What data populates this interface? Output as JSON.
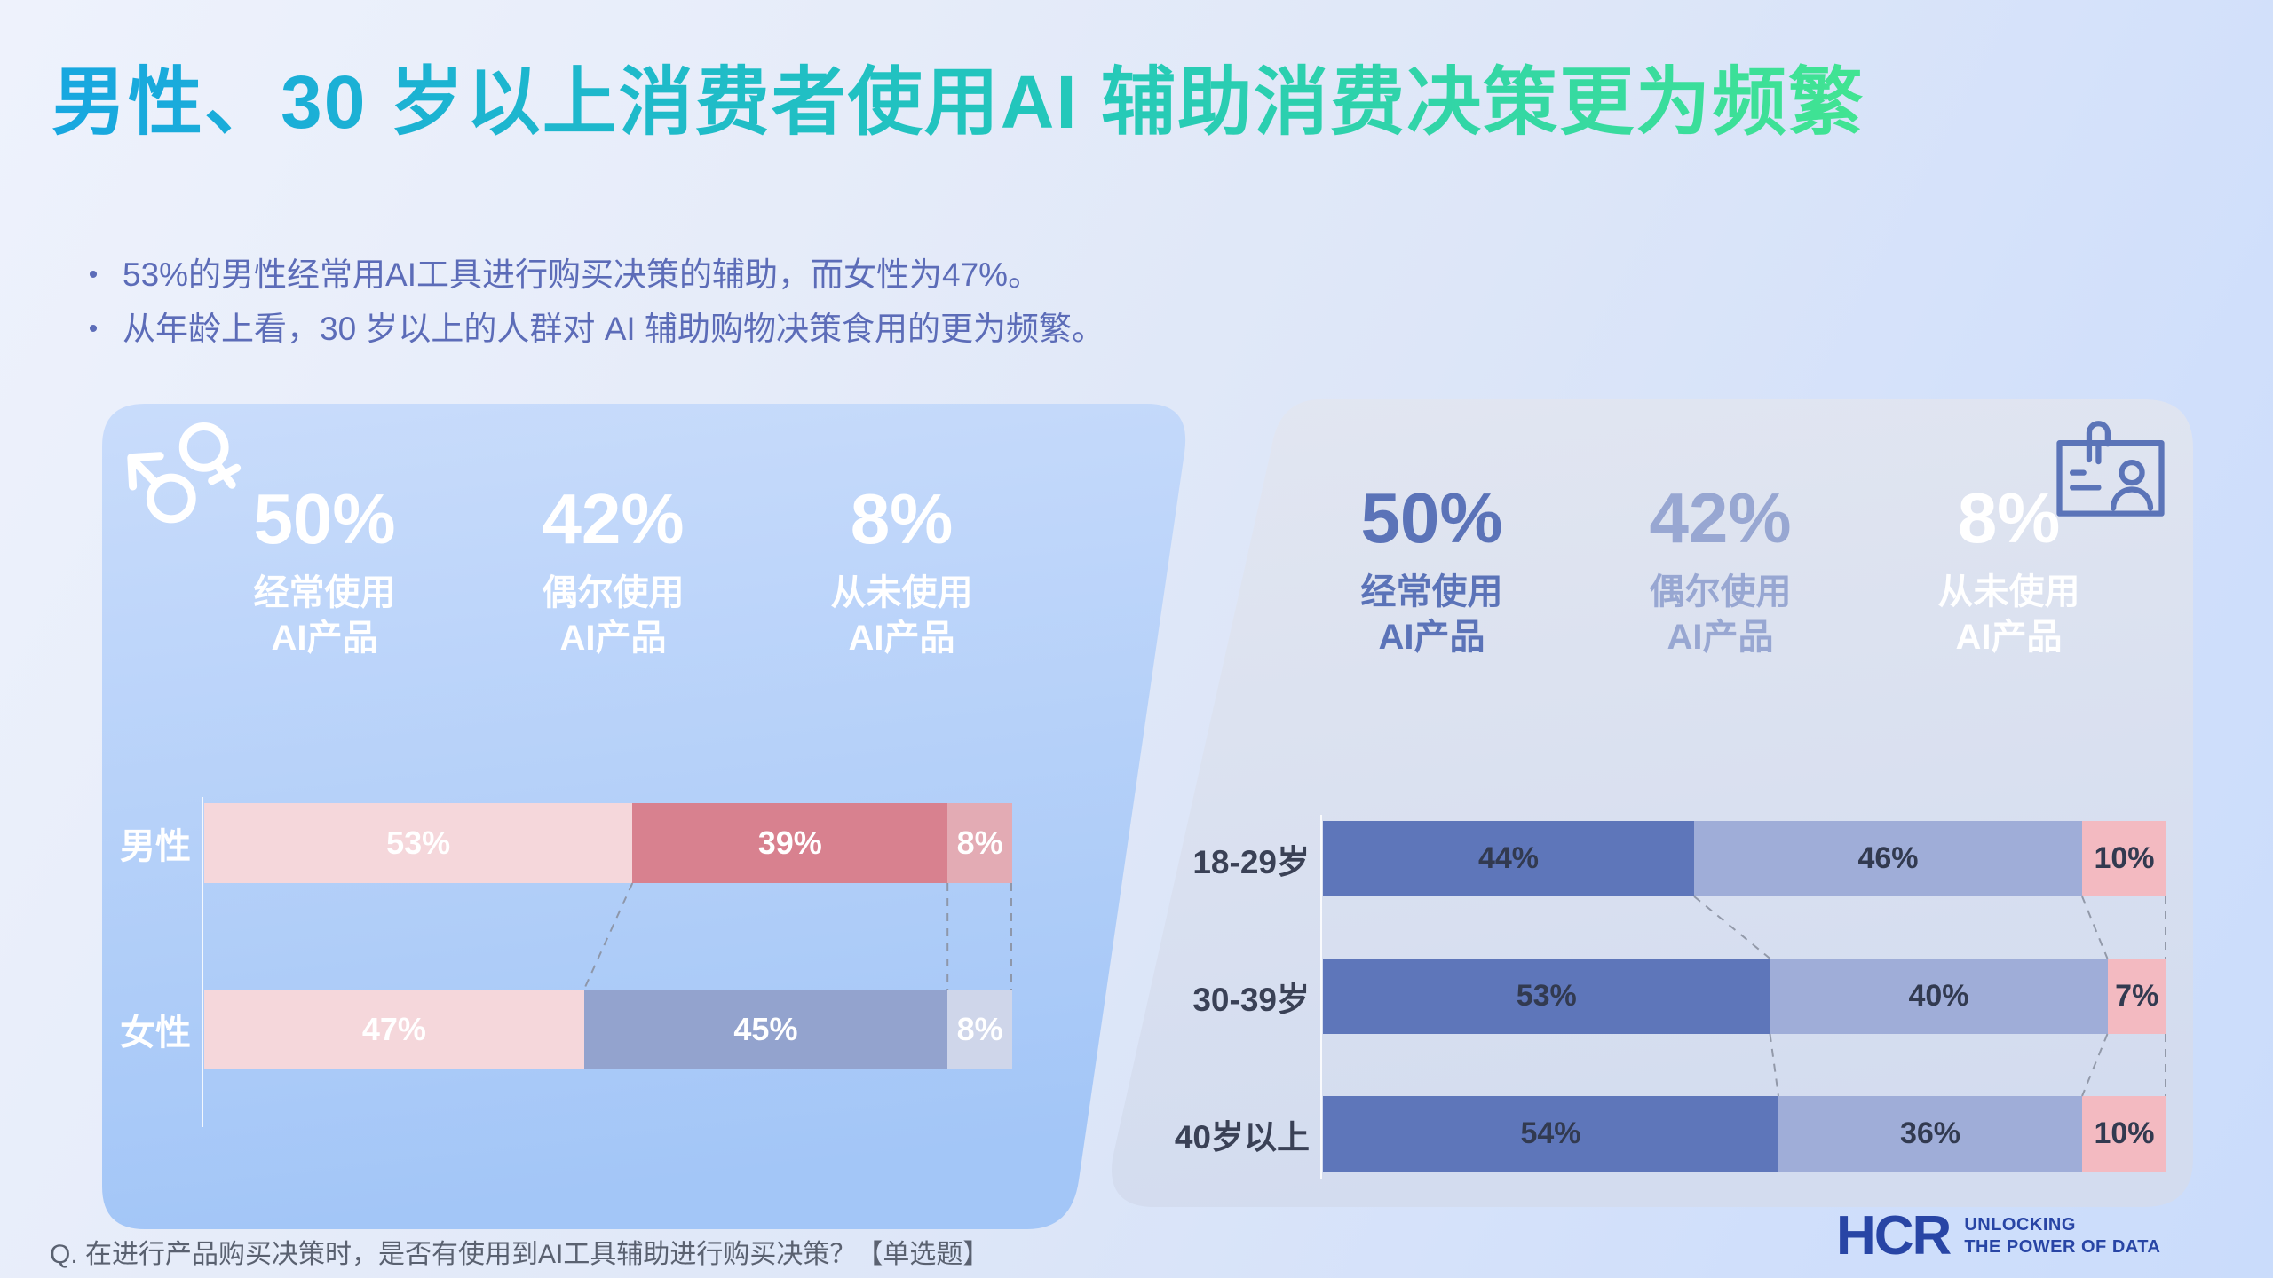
{
  "page": {
    "title": "男性、30 岁以上消费者使用AI 辅助消费决策更为频繁",
    "bullets": [
      "53%的男性经常用AI工具进行购买决策的辅助，而女性为47%。",
      "从年龄上看，30 岁以上的人群对 AI 辅助购物决策食用的更为频繁。"
    ],
    "footnote": "Q. 在进行产品购买决策时，是否有使用到AI工具辅助进行购买决策？【单选题】",
    "logo": {
      "name": "HCR",
      "tagline": [
        "UNLOCKING",
        "THE POWER OF DATA"
      ]
    },
    "icons": {
      "left_panel": "male-female-gender-symbols",
      "right_panel": "id-card-person"
    }
  },
  "palette": {
    "title_gradient_start": "#18a7e0",
    "title_gradient_mid": "#23c7bb",
    "title_gradient_end": "#41e492",
    "bullet_text": "#5c6cb8",
    "footnote_text": "#5a6170",
    "logo_blue": "#2845a5",
    "left_panel_bg_top": "#c9dcfb",
    "left_panel_bg_bottom": "#a3c6f7",
    "right_panel_bg_top": "#e2e6f1",
    "right_panel_bg_bottom": "#d3dcef",
    "connector": "#8b92a2",
    "axis": "rgba(255,255,255,0.85)"
  },
  "chart_data": [
    {
      "id": "gender",
      "type": "bar",
      "stacked": true,
      "orientation": "horizontal",
      "unit": "%",
      "xlim": [
        0,
        100
      ],
      "legend": [
        "经常使用AI产品",
        "偶尔使用AI产品",
        "从未使用AI产品"
      ],
      "stats": [
        {
          "value": "50%",
          "label_lines": [
            "经常使用",
            "AI产品"
          ],
          "color": "#ffffff"
        },
        {
          "value": "42%",
          "label_lines": [
            "偶尔使用",
            "AI产品"
          ],
          "color": "#ffffff"
        },
        {
          "value": "8%",
          "label_lines": [
            "从未使用",
            "AI产品"
          ],
          "color": "#ffffff"
        }
      ],
      "label_color": "#ffffff",
      "value_color": "#ffffff",
      "rows": [
        {
          "label": "男性",
          "segments": [
            {
              "value": 53,
              "color": "#f5d7db"
            },
            {
              "value": 39,
              "color": "#d8818f"
            },
            {
              "value": 8,
              "color": "#e3abb4"
            }
          ]
        },
        {
          "label": "女性",
          "segments": [
            {
              "value": 47,
              "color": "#f5d7db"
            },
            {
              "value": 45,
              "color": "#93a3ce"
            },
            {
              "value": 8,
              "color": "#cfd6ea"
            }
          ]
        }
      ]
    },
    {
      "id": "age",
      "type": "bar",
      "stacked": true,
      "orientation": "horizontal",
      "unit": "%",
      "xlim": [
        0,
        100
      ],
      "legend": [
        "经常使用AI产品",
        "偶尔使用AI产品",
        "从未使用AI产品"
      ],
      "stats": [
        {
          "value": "50%",
          "label_lines": [
            "经常使用",
            "AI产品"
          ],
          "color": "#5b73b8"
        },
        {
          "value": "42%",
          "label_lines": [
            "偶尔使用",
            "AI产品"
          ],
          "color": "#98a7d2"
        },
        {
          "value": "8%",
          "label_lines": [
            "从未使用",
            "AI产品"
          ],
          "color": "#ffffff"
        }
      ],
      "label_color": "#3a4156",
      "value_color": "#323a50",
      "rows": [
        {
          "label": "18-29岁",
          "segments": [
            {
              "value": 44,
              "color": "#5e76ba"
            },
            {
              "value": 46,
              "color": "#9fadd8"
            },
            {
              "value": 10,
              "color": "#f3bac1"
            }
          ]
        },
        {
          "label": "30-39岁",
          "segments": [
            {
              "value": 53,
              "color": "#5e76ba"
            },
            {
              "value": 40,
              "color": "#9fadd8"
            },
            {
              "value": 7,
              "color": "#f3bac1"
            }
          ]
        },
        {
          "label": "40岁以上",
          "segments": [
            {
              "value": 54,
              "color": "#5e76ba"
            },
            {
              "value": 36,
              "color": "#9fadd8"
            },
            {
              "value": 10,
              "color": "#f3bac1"
            }
          ]
        }
      ]
    }
  ]
}
